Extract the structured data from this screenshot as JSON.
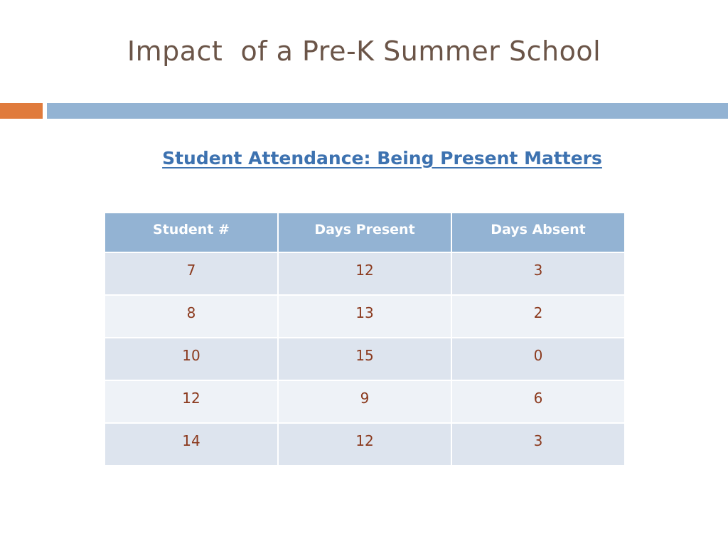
{
  "slide": {
    "title": "Impact  of a Pre-K Summer School",
    "subtitle": "Student Attendance: Being Present Matters"
  },
  "colors": {
    "title": "#6b5548",
    "accent_orange": "#e07b3c",
    "accent_blue": "#93b3d3",
    "subtitle": "#3d72b0",
    "header_bg": "#93b3d3",
    "cell_text": "#8b3a1e"
  },
  "table": {
    "headers": [
      "Student #",
      "Days Present",
      "Days Absent"
    ],
    "rows": [
      [
        "7",
        "12",
        "3"
      ],
      [
        "8",
        "13",
        "2"
      ],
      [
        "10",
        "15",
        "0"
      ],
      [
        "12",
        "9",
        "6"
      ],
      [
        "14",
        "12",
        "3"
      ]
    ]
  }
}
